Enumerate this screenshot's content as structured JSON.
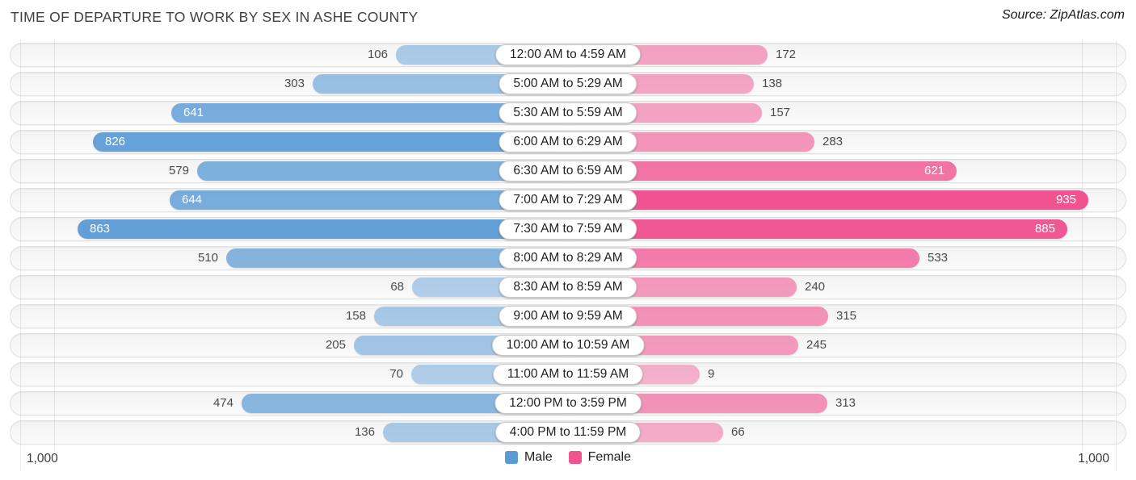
{
  "header": {
    "title": "TIME OF DEPARTURE TO WORK BY SEX IN ASHE COUNTY",
    "source": "Source: ZipAtlas.com"
  },
  "legend": {
    "male": "Male",
    "female": "Female"
  },
  "axis": {
    "left_max": "1,000",
    "right_max": "1,000"
  },
  "colors": {
    "male": "#5b9bd5",
    "female": "#f0538f"
  },
  "chart_data": {
    "type": "bar",
    "orientation": "diverging-horizontal",
    "title": "TIME OF DEPARTURE TO WORK BY SEX IN ASHE COUNTY",
    "categories": [
      "12:00 AM to 4:59 AM",
      "5:00 AM to 5:29 AM",
      "5:30 AM to 5:59 AM",
      "6:00 AM to 6:29 AM",
      "6:30 AM to 6:59 AM",
      "7:00 AM to 7:29 AM",
      "7:30 AM to 7:59 AM",
      "8:00 AM to 8:29 AM",
      "8:30 AM to 8:59 AM",
      "9:00 AM to 9:59 AM",
      "10:00 AM to 10:59 AM",
      "11:00 AM to 11:59 AM",
      "12:00 PM to 3:59 PM",
      "4:00 PM to 11:59 PM"
    ],
    "series": [
      {
        "name": "Male",
        "values": [
          106,
          303,
          641,
          826,
          579,
          644,
          863,
          510,
          68,
          158,
          205,
          70,
          474,
          136
        ]
      },
      {
        "name": "Female",
        "values": [
          172,
          138,
          157,
          283,
          621,
          935,
          885,
          533,
          240,
          315,
          245,
          9,
          313,
          66
        ]
      }
    ],
    "axis_max": 1000,
    "legend_position": "bottom-center",
    "grid": false
  }
}
